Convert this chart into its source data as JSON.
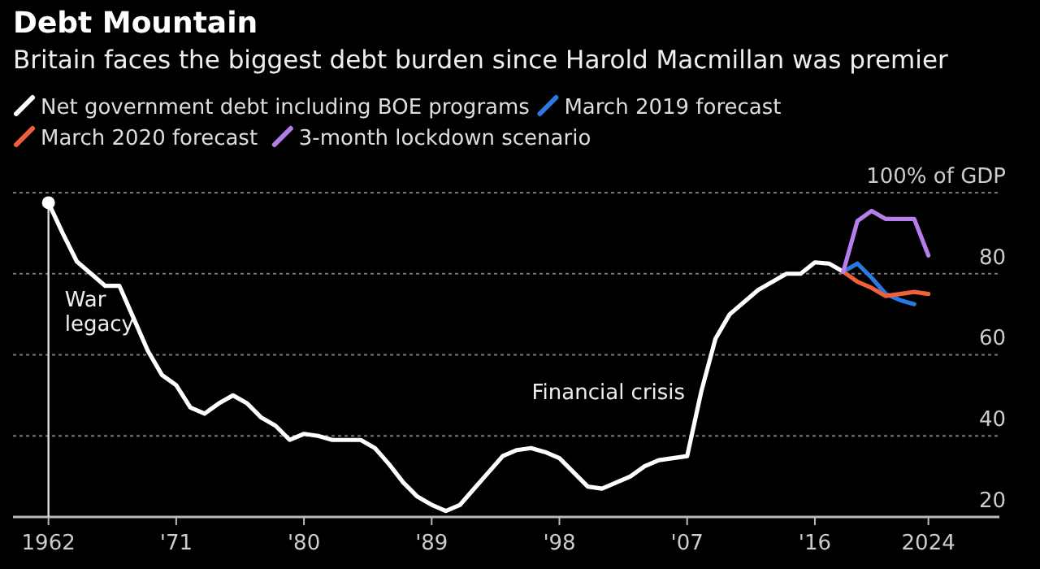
{
  "chart_data": {
    "type": "line",
    "title": "Debt Mountain",
    "subtitle": "Britain faces the biggest debt burden since Harold Macmillan was premier",
    "series": [
      {
        "name": "Net government debt including BOE programs",
        "color": "#ffffff",
        "x": [
          1962,
          1963,
          1964,
          1965,
          1966,
          1967,
          1968,
          1969,
          1970,
          1971,
          1972,
          1973,
          1974,
          1975,
          1976,
          1977,
          1978,
          1979,
          1980,
          1981,
          1982,
          1983,
          1984,
          1985,
          1986,
          1987,
          1988,
          1989,
          1990,
          1991,
          1992,
          1993,
          1994,
          1995,
          1996,
          1997,
          1998,
          1999,
          2000,
          2001,
          2002,
          2003,
          2004,
          2005,
          2006,
          2007,
          2008,
          2009,
          2010,
          2011,
          2012,
          2013,
          2014,
          2015,
          2016,
          2017,
          2018
        ],
        "values": [
          97.5,
          90,
          83,
          80,
          77,
          77,
          69,
          61,
          55,
          52.5,
          47,
          45.5,
          48,
          50,
          48,
          44.5,
          42.5,
          39,
          40.5,
          40,
          39,
          39,
          39,
          37,
          33,
          28.5,
          25,
          23,
          21.5,
          23,
          27,
          31,
          35,
          36.5,
          37,
          36,
          34.5,
          31,
          27.5,
          27,
          28.5,
          30,
          32.5,
          34,
          34.5,
          35,
          51,
          64,
          70,
          73,
          76,
          78,
          80,
          80,
          82.8,
          82.5,
          80.5
        ]
      },
      {
        "name": "March 2019 forecast",
        "color": "#2a78e4",
        "x": [
          2018,
          2019,
          2020,
          2021,
          2022,
          2023
        ],
        "values": [
          80.5,
          82.5,
          79,
          75,
          73.5,
          72.5
        ]
      },
      {
        "name": "March 2020 forecast",
        "color": "#f0603a",
        "x": [
          2018,
          2019,
          2020,
          2021,
          2022,
          2023,
          2024
        ],
        "values": [
          80.5,
          78,
          76.5,
          74.5,
          75,
          75.5,
          75
        ]
      },
      {
        "name": "3-month lockdown scenario",
        "color": "#b57ee8",
        "x": [
          2018,
          2019,
          2020,
          2021,
          2022,
          2023,
          2024
        ],
        "values": [
          80.5,
          93,
          95.5,
          93.5,
          93.5,
          93.5,
          84.5
        ]
      }
    ],
    "xlim": [
      1959.5,
      2029
    ],
    "xticks": [
      1962,
      {
        "value": 1971,
        "label": "'71"
      },
      {
        "value": 1980,
        "label": "'80"
      },
      {
        "value": 1989,
        "label": "'89"
      },
      {
        "value": 1998,
        "label": "'98"
      },
      {
        "value": 2007,
        "label": "'07"
      },
      {
        "value": 2016,
        "label": "'16"
      },
      2024
    ],
    "ylim": [
      20,
      101
    ],
    "yticks": [
      20,
      40,
      60,
      80,
      {
        "value": 100,
        "label": "100% of GDP"
      }
    ],
    "grid": "y",
    "legend": "top left",
    "ref_lines": [
      {
        "axis": "x",
        "value": 1962,
        "label": "War legacy"
      }
    ],
    "annotations": [
      {
        "text": "Financial crisis",
        "x": 2008,
        "y": 51
      }
    ]
  }
}
